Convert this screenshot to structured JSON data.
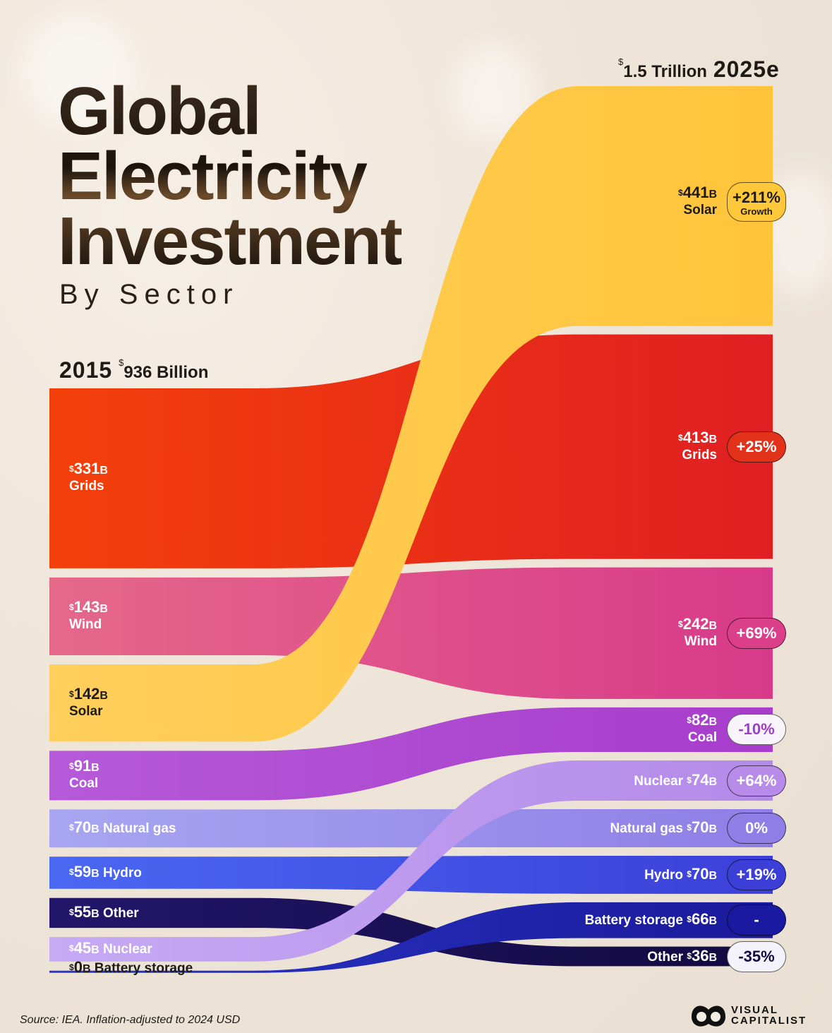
{
  "title": {
    "line1": "Global",
    "line2": "Electricity",
    "line3": "Investment",
    "subtitle": "By Sector"
  },
  "chart_data": {
    "type": "sankey-bump",
    "title": "Global Electricity Investment By Sector",
    "currency": "$",
    "unit": "B",
    "start": {
      "year": "2015",
      "total_label": "936 Billion"
    },
    "end": {
      "year": "2025e",
      "total_label": "1.5 Trillion"
    },
    "series": [
      {
        "name": "Grids",
        "v2015": 331,
        "v2025": 413,
        "color": "#f3400a",
        "color2": "#df1f22",
        "badge": {
          "text": "+25%",
          "bg": "#e2331a",
          "fg": "#ffffff"
        }
      },
      {
        "name": "Wind",
        "v2015": 143,
        "v2025": 242,
        "color": "#e5688a",
        "color2": "#d83a8a",
        "badge": {
          "text": "+69%",
          "bg": "#dc3f8a",
          "fg": "#ffffff"
        }
      },
      {
        "name": "Solar",
        "v2015": 142,
        "v2025": 441,
        "color": "#ffcf5c",
        "color2": "#ffc43a",
        "badge": {
          "text": "+211%",
          "sub": "Growth",
          "bg": "#ffc83a",
          "fg": "#1e1a16"
        }
      },
      {
        "name": "Coal",
        "v2015": 91,
        "v2025": 82,
        "color": "#b55ad8",
        "color2": "#a83ccc",
        "badge": {
          "text": "-10%",
          "bg": "#f8f4fb",
          "fg": "#a03cc6"
        }
      },
      {
        "name": "Natural gas",
        "v2015": 70,
        "v2025": 70,
        "color": "#a8a6f2",
        "color2": "#8f7ee6",
        "badge": {
          "text": "0%",
          "bg": "#8f7ee6",
          "fg": "#ffffff"
        }
      },
      {
        "name": "Hydro",
        "v2015": 59,
        "v2025": 70,
        "color": "#4a68f2",
        "color2": "#3b3fd8",
        "badge": {
          "text": "+19%",
          "bg": "#3b3fd8",
          "fg": "#ffffff"
        }
      },
      {
        "name": "Other",
        "v2015": 55,
        "v2025": 36,
        "color": "#22166a",
        "color2": "#120a40",
        "badge": {
          "text": "-35%",
          "bg": "#f4f2fa",
          "fg": "#120a40"
        }
      },
      {
        "name": "Nuclear",
        "v2015": 45,
        "v2025": 74,
        "color": "#c6aaf4",
        "color2": "#b48ae8",
        "badge": {
          "text": "+64%",
          "bg": "#b88be8",
          "fg": "#ffffff"
        }
      },
      {
        "name": "Battery storage",
        "v2015": 0,
        "v2025": 66,
        "color": "#2a36c8",
        "color2": "#1a1a9a",
        "badge": {
          "text": "-",
          "bg": "#1a1aa0",
          "fg": "#ffffff"
        }
      }
    ],
    "order_2015": [
      "Grids",
      "Wind",
      "Solar",
      "Coal",
      "Natural gas",
      "Hydro",
      "Other",
      "Nuclear",
      "Battery storage"
    ],
    "order_2025": [
      "Solar",
      "Grids",
      "Wind",
      "Coal",
      "Nuclear",
      "Natural gas",
      "Hydro",
      "Battery storage",
      "Other"
    ]
  },
  "footer": {
    "source": "Source: IEA. Inflation-adjusted to 2024 USD",
    "logo_line1": "VISUAL",
    "logo_line2": "CAPITALIST"
  }
}
